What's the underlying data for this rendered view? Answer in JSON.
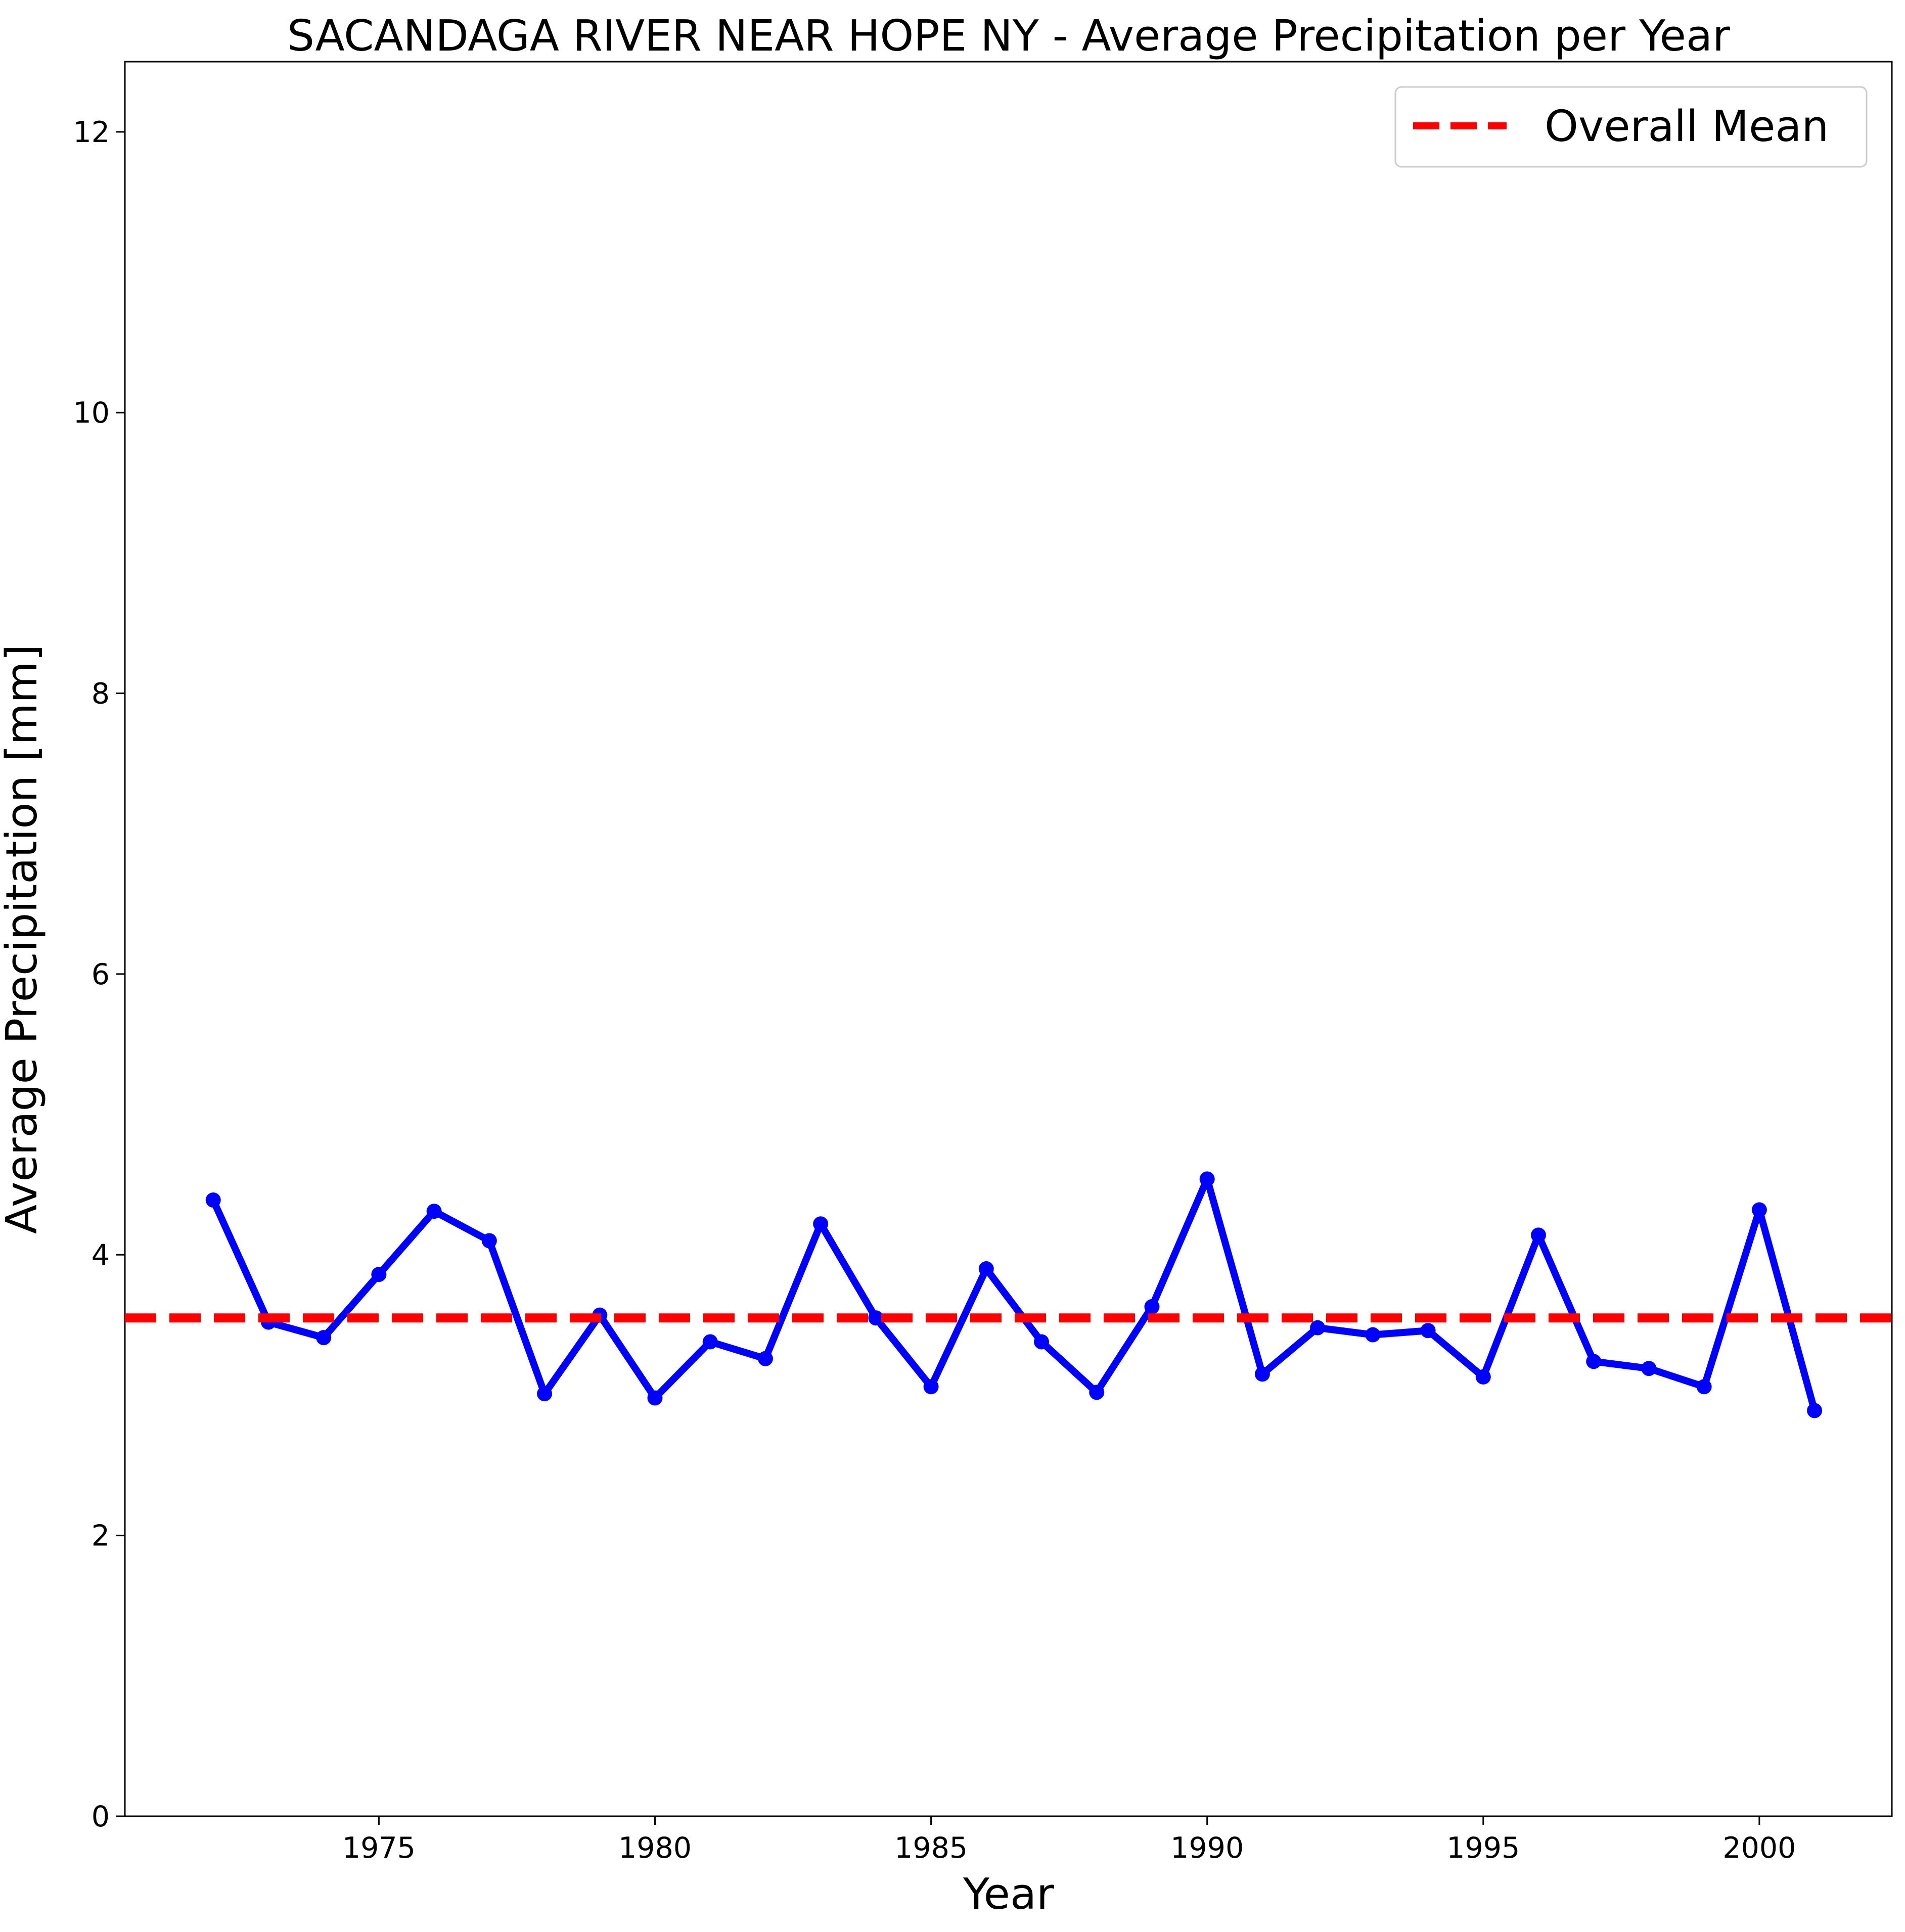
{
  "chart_data": {
    "type": "line",
    "title": "SACANDAGA RIVER NEAR HOPE NY - Average Precipitation per Year",
    "xlabel": "Year",
    "ylabel": "Average Precipitation [mm]",
    "xlim": [
      1970.4,
      2002.4
    ],
    "ylim": [
      0,
      12.5
    ],
    "xticks": [
      1975,
      1980,
      1985,
      1990,
      1995,
      2000
    ],
    "yticks": [
      0,
      2,
      4,
      6,
      8,
      10,
      12
    ],
    "grid": false,
    "legend": {
      "position": "top-right"
    },
    "colors": {
      "series": "#0000ff",
      "mean": "#ff0000"
    },
    "series": [
      {
        "x": [
          1972,
          1973,
          1974,
          1975,
          1976,
          1977,
          1978,
          1979,
          1980,
          1981,
          1982,
          1983,
          1984,
          1985,
          1986,
          1987,
          1988,
          1989,
          1990,
          1991,
          1992,
          1993,
          1994,
          1995,
          1996,
          1997,
          1998,
          1999,
          2000,
          2001
        ],
        "values": [
          4.39,
          3.52,
          3.41,
          3.86,
          4.31,
          4.1,
          3.01,
          3.57,
          2.98,
          3.38,
          3.26,
          4.22,
          3.55,
          3.06,
          3.9,
          3.38,
          3.02,
          3.63,
          4.54,
          3.15,
          3.48,
          3.43,
          3.46,
          3.13,
          4.14,
          3.24,
          3.19,
          3.06,
          4.32,
          2.89
        ]
      }
    ],
    "reference_lines": [
      {
        "name": "Overall Mean",
        "y": 3.55,
        "style": "dashed"
      }
    ]
  }
}
